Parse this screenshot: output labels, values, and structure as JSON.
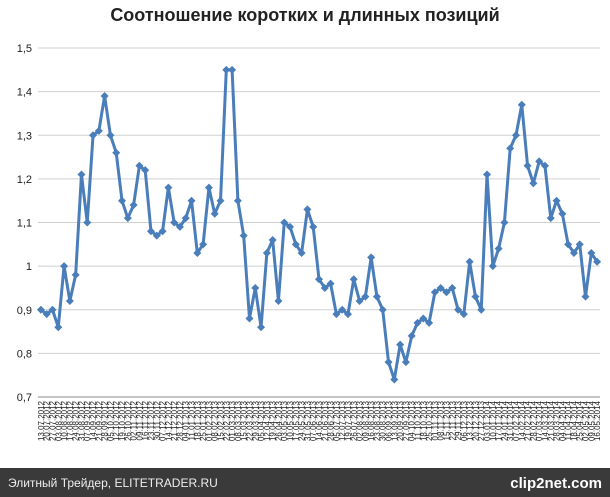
{
  "chart_data": {
    "type": "line",
    "title": "Соотношение коротких и длинных позиций",
    "categories": [
      "13.07.2012",
      "20.07.2012",
      "27.07.2012",
      "03.08.2012",
      "10.08.2012",
      "17.08.2012",
      "24.08.2012",
      "31.08.2012",
      "07.09.2012",
      "14.09.2012",
      "21.09.2012",
      "28.09.2012",
      "05.10.2012",
      "12.10.2012",
      "19.10.2012",
      "26.10.2012",
      "02.11.2012",
      "09.11.2012",
      "16.11.2012",
      "23.11.2012",
      "30.11.2012",
      "07.12.2012",
      "14.12.2012",
      "21.12.2012",
      "28.12.2012",
      "04.01.2013",
      "11.01.2013",
      "18.01.2013",
      "25.01.2013",
      "01.02.2013",
      "08.02.2013",
      "15.02.2013",
      "22.02.2013",
      "01.03.2013",
      "08.03.2013",
      "15.03.2013",
      "22.03.2013",
      "29.03.2013",
      "05.04.2013",
      "12.04.2013",
      "19.04.2013",
      "26.04.2013",
      "03.05.2013",
      "10.05.2013",
      "17.05.2013",
      "24.05.2013",
      "31.05.2013",
      "07.06.2013",
      "14.06.2013",
      "21.06.2013",
      "28.06.2013",
      "05.07.2013",
      "12.07.2013",
      "19.07.2013",
      "26.07.2013",
      "02.08.2013",
      "09.08.2013",
      "16.08.2013",
      "23.08.2013",
      "30.08.2013",
      "06.09.2013",
      "13.09.2013",
      "20.09.2013",
      "27.09.2013",
      "04.10.2013",
      "11.10.2013",
      "18.10.2013",
      "25.10.2013",
      "01.11.2013",
      "08.11.2013",
      "15.11.2013",
      "22.11.2013",
      "29.11.2013",
      "06.12.2013",
      "13.12.2013",
      "20.12.2013",
      "27.12.2013",
      "03.01.2014",
      "10.01.2014",
      "17.01.2014",
      "24.01.2014",
      "31.01.2014",
      "07.02.2014",
      "14.02.2014",
      "21.02.2014",
      "28.02.2014",
      "07.03.2014",
      "14.03.2014",
      "21.03.2014",
      "28.03.2014",
      "04.04.2014",
      "11.04.2014",
      "18.04.2014",
      "25.04.2014",
      "02.05.2014",
      "09.05.2014",
      "16.05.2014"
    ],
    "values": [
      0.9,
      0.89,
      0.9,
      0.86,
      1.0,
      0.92,
      0.98,
      1.21,
      1.1,
      1.3,
      1.31,
      1.39,
      1.3,
      1.26,
      1.15,
      1.11,
      1.14,
      1.23,
      1.22,
      1.08,
      1.07,
      1.08,
      1.18,
      1.1,
      1.09,
      1.11,
      1.15,
      1.03,
      1.05,
      1.18,
      1.12,
      1.15,
      1.45,
      1.45,
      1.15,
      1.07,
      0.88,
      0.95,
      0.86,
      1.03,
      1.06,
      0.92,
      1.1,
      1.09,
      1.05,
      1.03,
      1.13,
      1.09,
      0.97,
      0.95,
      0.96,
      0.89,
      0.9,
      0.89,
      0.97,
      0.92,
      0.93,
      1.02,
      0.93,
      0.9,
      0.78,
      0.74,
      0.82,
      0.78,
      0.84,
      0.87,
      0.88,
      0.87,
      0.94,
      0.95,
      0.94,
      0.95,
      0.9,
      0.89,
      1.01,
      0.93,
      0.9,
      1.21,
      1.0,
      1.04,
      1.1,
      1.27,
      1.3,
      1.37,
      1.23,
      1.19,
      1.24,
      1.23,
      1.11,
      1.15,
      1.12,
      1.05,
      1.03,
      1.05,
      0.93,
      1.03,
      1.01
    ],
    "color": "#4a7ebb",
    "ylim": [
      0.7,
      1.5
    ],
    "yticks": [
      {
        "value": 0.7,
        "label": "0,7"
      },
      {
        "value": 0.8,
        "label": "0,8"
      },
      {
        "value": 0.9,
        "label": "0,9"
      },
      1,
      {
        "value": 1.1,
        "label": "1,1"
      },
      {
        "value": 1.2,
        "label": "1,2"
      },
      {
        "value": 1.3,
        "label": "1,3"
      },
      {
        "value": 1.4,
        "label": "1,4"
      },
      {
        "value": 1.5,
        "label": "1,5"
      }
    ],
    "grid": true
  },
  "footer": {
    "source": "Элитный Трейдер, ELITETRADER.RU",
    "logo": "clip2net.com"
  }
}
